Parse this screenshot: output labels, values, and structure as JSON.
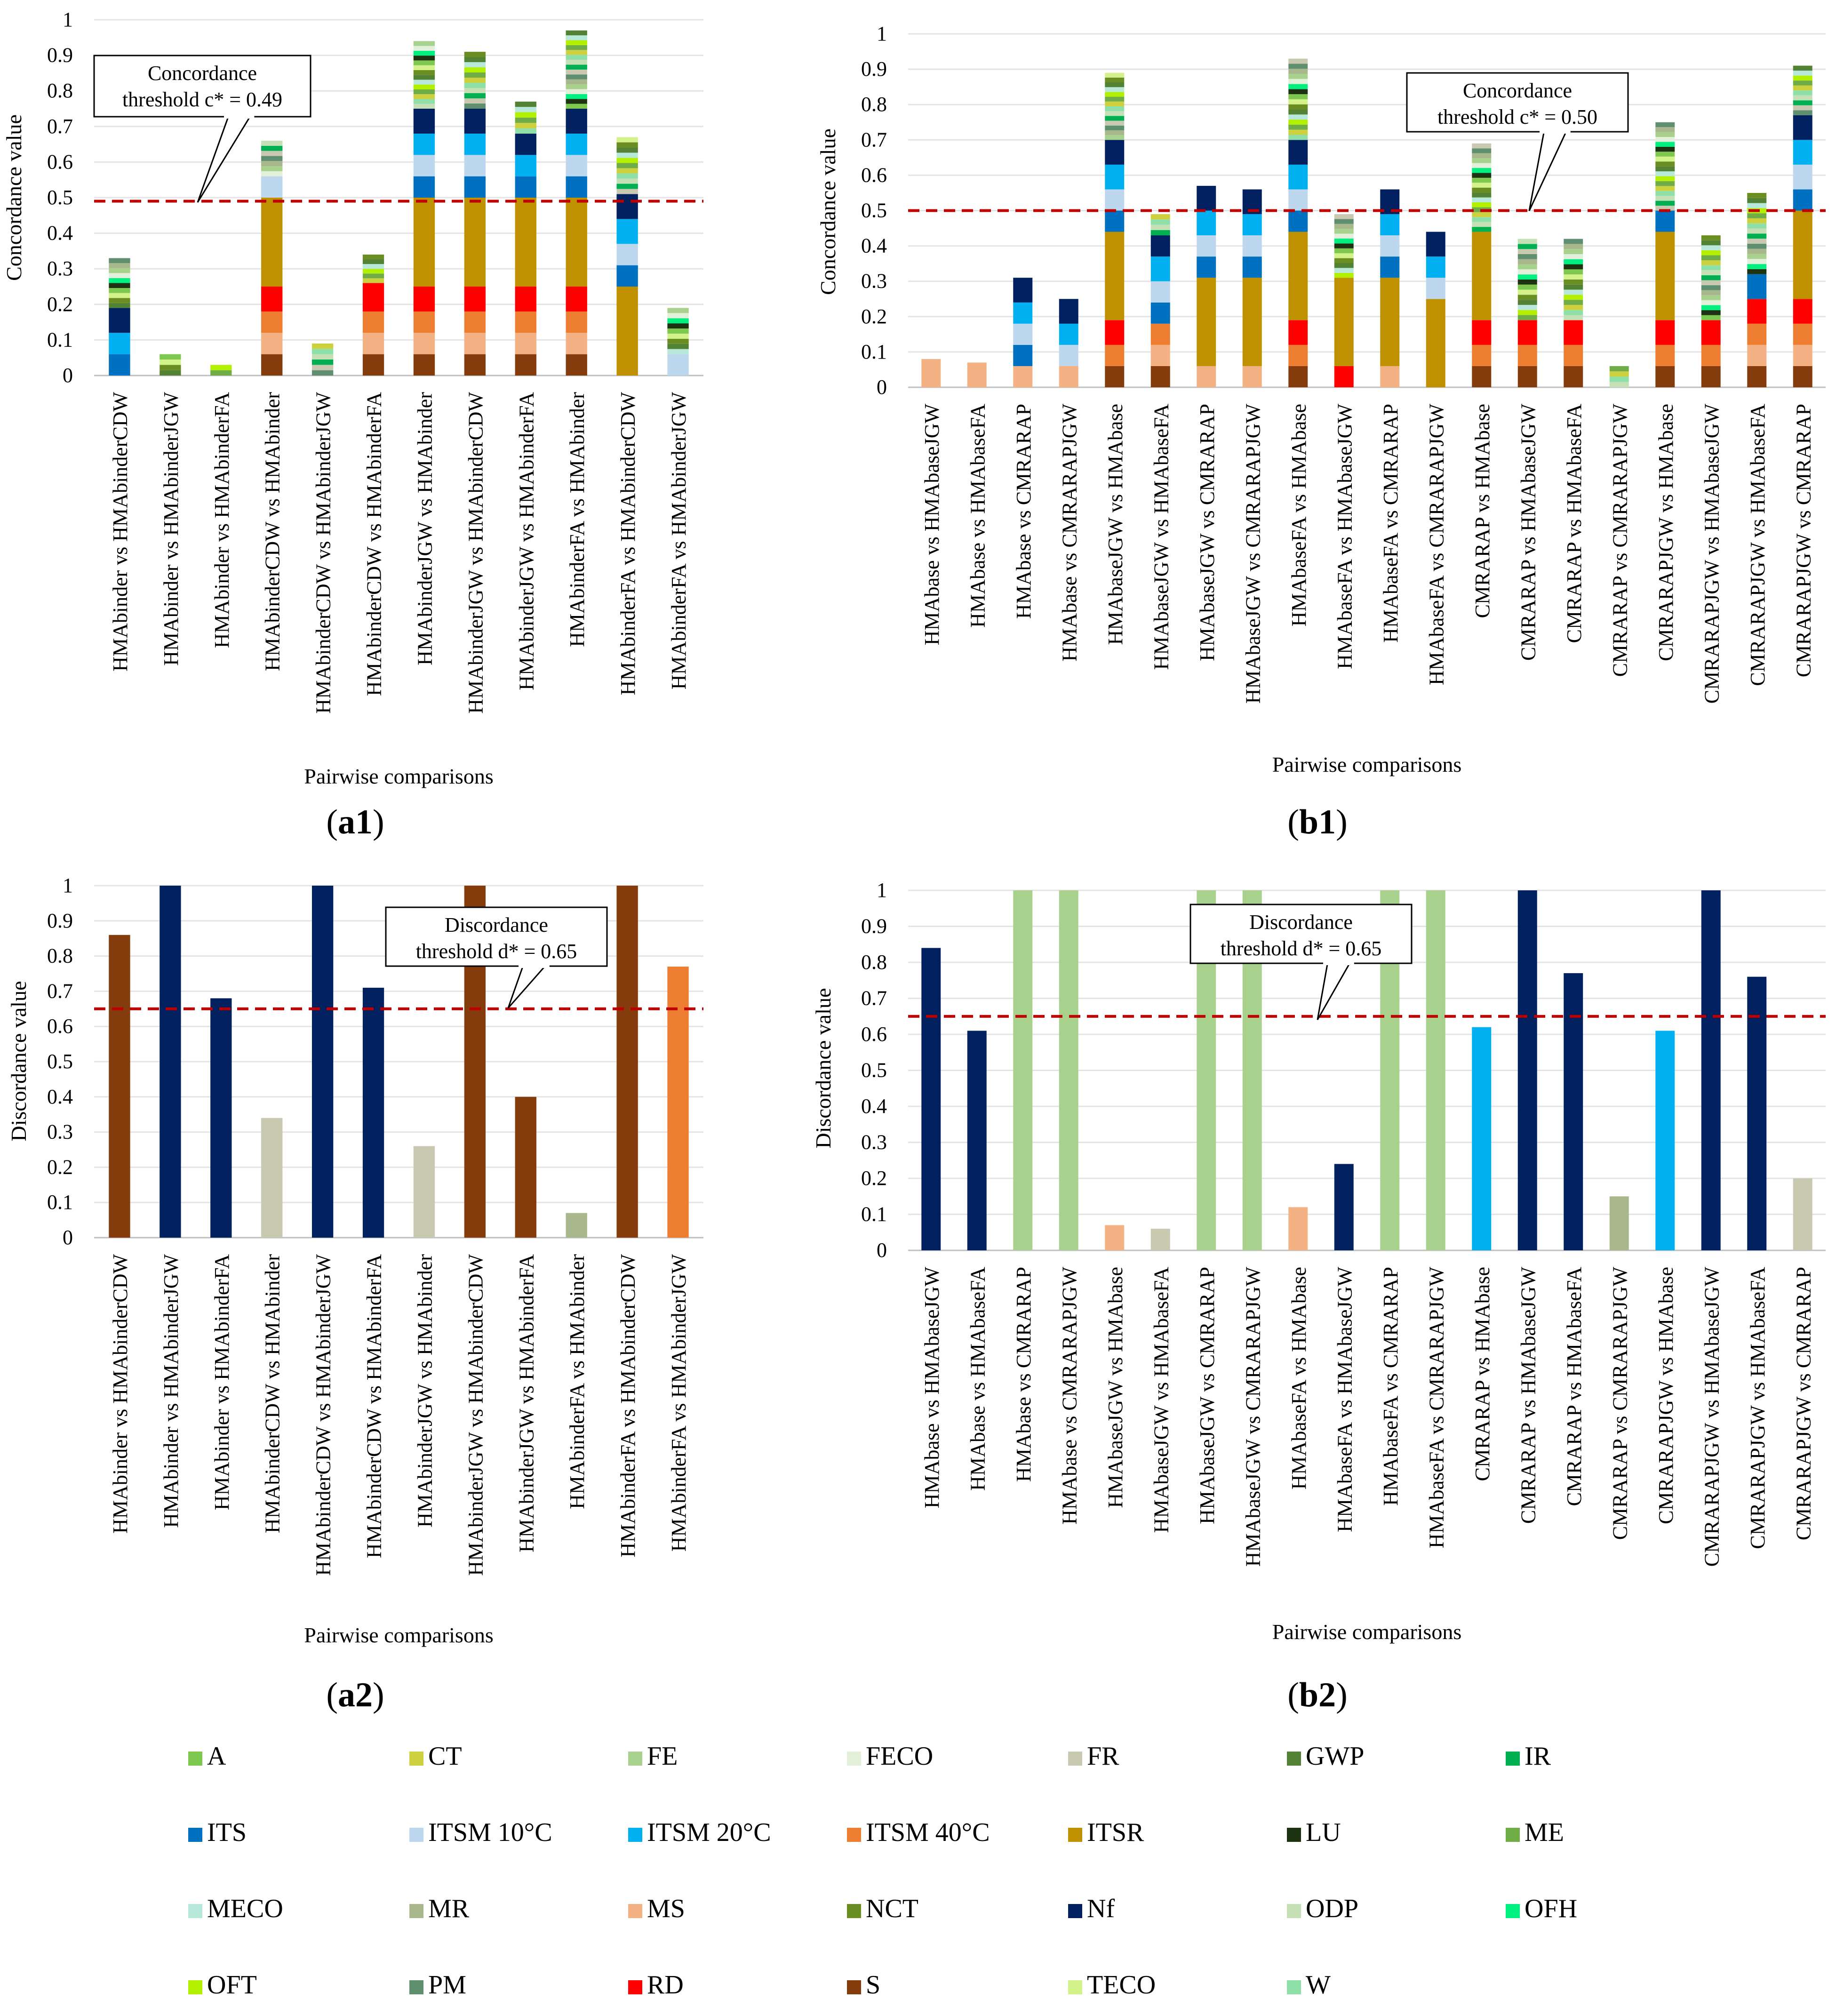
{
  "panel_labels": [
    "a1",
    "b1",
    "a2",
    "b2"
  ],
  "colors": {
    "A": "#7ec850",
    "CT": "#cdd03f",
    "FE": "#a9d18e",
    "FECO": "#e2f0d9",
    "FR": "#c9c9b1",
    "GWP": "#548235",
    "IR": "#00b050",
    "ITS": "#0070c0",
    "ITSM 10°C": "#bdd7ee",
    "ITSM 20°C": "#00b0f0",
    "ITSM 40°C": "#ed7d31",
    "ITSR": "#bf9000",
    "LU": "#1d3311",
    "ME": "#70ad47",
    "MECO": "#b7e8da",
    "MR": "#a9b78c",
    "MS": "#f4b183",
    "NCT": "#6b8e23",
    "Nf": "#002060",
    "ODP": "#c5e0b4",
    "OFH": "#00f080",
    "OFT": "#b3f000",
    "PM": "#5f8f6f",
    "RD": "#ff0000",
    "S": "#843c0c",
    "TECO": "#d4f28a",
    "W": "#8fe0a8"
  },
  "legend": [
    "A",
    "CT",
    "FE",
    "FECO",
    "FR",
    "GWP",
    "IR",
    "ITS",
    "ITSM 10°C",
    "ITSM 20°C",
    "ITSM 40°C",
    "ITSR",
    "LU",
    "ME",
    "MECO",
    "MR",
    "MS",
    "NCT",
    "Nf",
    "ODP",
    "OFH",
    "OFT",
    "PM",
    "RD",
    "S",
    "TECO",
    "W"
  ],
  "chart_data": [
    {
      "id": "a1",
      "type": "bar",
      "stacked": true,
      "ylabel": "Concordance value",
      "xlabel": "Pairwise comparisons",
      "ylim": [
        0,
        1
      ],
      "yticks": [
        0,
        0.1,
        0.2,
        0.3,
        0.4,
        0.5,
        0.6,
        0.7,
        0.8,
        0.9,
        1
      ],
      "threshold": 0.49,
      "threshold_text": [
        "Concordance",
        "threshold c* = 0.49"
      ],
      "categories": [
        "HMAbinder vs HMAbinderCDW",
        "HMAbinder vs HMAbinderJGW",
        "HMAbinder vs HMAbinderFA",
        "HMAbinderCDW vs HMAbinder",
        "HMAbinderCDW vs HMAbinderJGW",
        "HMAbinderCDW vs HMAbinderFA",
        "HMAbinderJGW vs HMAbinder",
        "HMAbinderJGW vs HMAbinderCDW",
        "HMAbinderJGW vs HMAbinderFA",
        "HMAbinderFA vs HMAbinder",
        "HMAbinderFA vs HMAbinderCDW",
        "HMAbinderFA vs HMAbinderJGW"
      ],
      "values": [
        0.33,
        0.06,
        0.03,
        0.66,
        0.09,
        0.34,
        0.94,
        0.91,
        0.77,
        0.97,
        0.67,
        0.19
      ],
      "segments": [
        [
          [
            "ITS",
            0.06
          ],
          [
            "ITSM 20°C",
            0.06
          ],
          [
            "Nf",
            0.07
          ],
          [
            "rest",
            0.14
          ]
        ],
        [
          [
            "rest",
            0.06
          ]
        ],
        [
          [
            "rest",
            0.03
          ]
        ],
        [
          [
            "S",
            0.06
          ],
          [
            "MS",
            0.06
          ],
          [
            "ITSM 40°C",
            0.06
          ],
          [
            "RD",
            0.07
          ],
          [
            "ITSR",
            0.25
          ],
          [
            "ITSM 10°C",
            0.06
          ],
          [
            "rest",
            0.1
          ]
        ],
        [
          [
            "rest",
            0.09
          ]
        ],
        [
          [
            "S",
            0.06
          ],
          [
            "MS",
            0.06
          ],
          [
            "ITSM 40°C",
            0.06
          ],
          [
            "RD",
            0.08
          ],
          [
            "rest",
            0.08
          ]
        ],
        [
          [
            "S",
            0.06
          ],
          [
            "MS",
            0.06
          ],
          [
            "ITSM 40°C",
            0.06
          ],
          [
            "RD",
            0.07
          ],
          [
            "ITSR",
            0.25
          ],
          [
            "ITS",
            0.06
          ],
          [
            "ITSM 10°C",
            0.06
          ],
          [
            "ITSM 20°C",
            0.06
          ],
          [
            "Nf",
            0.07
          ],
          [
            "rest",
            0.19
          ]
        ],
        [
          [
            "S",
            0.06
          ],
          [
            "MS",
            0.06
          ],
          [
            "ITSM 40°C",
            0.06
          ],
          [
            "RD",
            0.07
          ],
          [
            "ITSR",
            0.25
          ],
          [
            "ITS",
            0.06
          ],
          [
            "ITSM 10°C",
            0.06
          ],
          [
            "ITSM 20°C",
            0.06
          ],
          [
            "Nf",
            0.07
          ],
          [
            "rest",
            0.16
          ]
        ],
        [
          [
            "S",
            0.06
          ],
          [
            "MS",
            0.06
          ],
          [
            "ITSM 40°C",
            0.06
          ],
          [
            "RD",
            0.07
          ],
          [
            "ITSR",
            0.25
          ],
          [
            "ITS",
            0.06
          ],
          [
            "ITSM 20°C",
            0.06
          ],
          [
            "Nf",
            0.06
          ],
          [
            "rest",
            0.09
          ]
        ],
        [
          [
            "S",
            0.06
          ],
          [
            "MS",
            0.06
          ],
          [
            "ITSM 40°C",
            0.06
          ],
          [
            "RD",
            0.07
          ],
          [
            "ITSR",
            0.25
          ],
          [
            "ITS",
            0.06
          ],
          [
            "ITSM 10°C",
            0.06
          ],
          [
            "ITSM 20°C",
            0.06
          ],
          [
            "Nf",
            0.07
          ],
          [
            "rest",
            0.22
          ]
        ],
        [
          [
            "ITSR",
            0.25
          ],
          [
            "ITS",
            0.06
          ],
          [
            "ITSM 10°C",
            0.06
          ],
          [
            "ITSM 20°C",
            0.07
          ],
          [
            "Nf",
            0.07
          ],
          [
            "rest",
            0.16
          ]
        ],
        [
          [
            "ITSM 10°C",
            0.06
          ],
          [
            "rest",
            0.13
          ]
        ]
      ]
    },
    {
      "id": "b1",
      "type": "bar",
      "stacked": true,
      "ylabel": "Concordance value",
      "xlabel": "Pairwise comparisons",
      "ylim": [
        0,
        1
      ],
      "yticks": [
        0,
        0.1,
        0.2,
        0.3,
        0.4,
        0.5,
        0.6,
        0.7,
        0.8,
        0.9,
        1
      ],
      "threshold": 0.5,
      "threshold_text": [
        "Concordance",
        "threshold c* = 0.50"
      ],
      "categories": [
        "HMAbase vs HMAbaseJGW",
        "HMAbase vs HMAbaseFA",
        "HMAbase vs CMRARAP",
        "HMAbase vs CMRARAPJGW",
        "HMAbaseJGW vs HMAbase",
        "HMAbaseJGW vs HMAbaseFA",
        "HMAbaseJGW vs CMRARAP",
        "HMAbaseJGW vs CMRARAPJGW",
        "HMAbaseFA vs HMAbase",
        "HMAbaseFA vs HMAbaseJGW",
        "HMAbaseFA vs CMRARAP",
        "HMAbaseFA vs CMRARAPJGW",
        "CMRARAP vs HMAbase",
        "CMRARAP vs HMAbaseJGW",
        "CMRARAP vs HMAbaseFA",
        "CMRARAP vs CMRARAPJGW",
        "CMRARAPJGW vs HMAbase",
        "CMRARAPJGW vs HMAbaseJGW",
        "CMRARAPJGW vs HMAbaseFA",
        "CMRARAPJGW vs CMRARAP"
      ],
      "values": [
        0.08,
        0.07,
        0.31,
        0.25,
        0.89,
        0.49,
        0.57,
        0.56,
        0.93,
        0.49,
        0.56,
        0.44,
        0.69,
        0.42,
        0.42,
        0.06,
        0.75,
        0.43,
        0.55,
        0.91
      ],
      "segments": [
        [
          [
            "MS",
            0.08
          ]
        ],
        [
          [
            "MS",
            0.07
          ]
        ],
        [
          [
            "MS",
            0.06
          ],
          [
            "ITS",
            0.06
          ],
          [
            "ITSM 10°C",
            0.06
          ],
          [
            "ITSM 20°C",
            0.06
          ],
          [
            "Nf",
            0.07
          ]
        ],
        [
          [
            "MS",
            0.06
          ],
          [
            "ITSM 10°C",
            0.06
          ],
          [
            "ITSM 20°C",
            0.06
          ],
          [
            "Nf",
            0.07
          ]
        ],
        [
          [
            "S",
            0.06
          ],
          [
            "ITSM 40°C",
            0.06
          ],
          [
            "RD",
            0.07
          ],
          [
            "ITSR",
            0.25
          ],
          [
            "ITS",
            0.06
          ],
          [
            "ITSM 10°C",
            0.06
          ],
          [
            "ITSM 20°C",
            0.07
          ],
          [
            "Nf",
            0.07
          ],
          [
            "rest",
            0.19
          ]
        ],
        [
          [
            "S",
            0.06
          ],
          [
            "MS",
            0.06
          ],
          [
            "ITSM 40°C",
            0.06
          ],
          [
            "ITS",
            0.06
          ],
          [
            "ITSM 10°C",
            0.06
          ],
          [
            "ITSM 20°C",
            0.07
          ],
          [
            "Nf",
            0.06
          ],
          [
            "rest",
            0.06
          ]
        ],
        [
          [
            "MS",
            0.06
          ],
          [
            "ITSR",
            0.25
          ],
          [
            "ITS",
            0.06
          ],
          [
            "ITSM 10°C",
            0.06
          ],
          [
            "ITSM 20°C",
            0.07
          ],
          [
            "Nf",
            0.07
          ]
        ],
        [
          [
            "MS",
            0.06
          ],
          [
            "ITSR",
            0.25
          ],
          [
            "ITS",
            0.06
          ],
          [
            "ITSM 10°C",
            0.06
          ],
          [
            "ITSM 20°C",
            0.06
          ],
          [
            "Nf",
            0.07
          ]
        ],
        [
          [
            "S",
            0.06
          ],
          [
            "ITSM 40°C",
            0.06
          ],
          [
            "RD",
            0.07
          ],
          [
            "ITSR",
            0.25
          ],
          [
            "ITS",
            0.06
          ],
          [
            "ITSM 10°C",
            0.06
          ],
          [
            "ITSM 20°C",
            0.07
          ],
          [
            "Nf",
            0.07
          ],
          [
            "rest",
            0.23
          ]
        ],
        [
          [
            "RD",
            0.06
          ],
          [
            "ITSR",
            0.25
          ],
          [
            "rest",
            0.18
          ]
        ],
        [
          [
            "MS",
            0.06
          ],
          [
            "ITSR",
            0.25
          ],
          [
            "ITS",
            0.06
          ],
          [
            "ITSM 10°C",
            0.06
          ],
          [
            "ITSM 20°C",
            0.06
          ],
          [
            "Nf",
            0.07
          ]
        ],
        [
          [
            "ITSR",
            0.25
          ],
          [
            "ITSM 10°C",
            0.06
          ],
          [
            "ITSM 20°C",
            0.06
          ],
          [
            "Nf",
            0.07
          ]
        ],
        [
          [
            "S",
            0.06
          ],
          [
            "ITSM 40°C",
            0.06
          ],
          [
            "RD",
            0.07
          ],
          [
            "ITSR",
            0.25
          ],
          [
            "rest",
            0.25
          ]
        ],
        [
          [
            "S",
            0.06
          ],
          [
            "ITSM 40°C",
            0.06
          ],
          [
            "RD",
            0.07
          ],
          [
            "rest",
            0.23
          ]
        ],
        [
          [
            "S",
            0.06
          ],
          [
            "ITSM 40°C",
            0.06
          ],
          [
            "RD",
            0.07
          ],
          [
            "rest",
            0.23
          ]
        ],
        [
          [
            "rest",
            0.06
          ]
        ],
        [
          [
            "S",
            0.06
          ],
          [
            "ITSM 40°C",
            0.06
          ],
          [
            "RD",
            0.07
          ],
          [
            "ITSR",
            0.25
          ],
          [
            "ITS",
            0.06
          ],
          [
            "rest",
            0.25
          ]
        ],
        [
          [
            "S",
            0.06
          ],
          [
            "ITSM 40°C",
            0.06
          ],
          [
            "RD",
            0.07
          ],
          [
            "rest",
            0.24
          ]
        ],
        [
          [
            "S",
            0.06
          ],
          [
            "MS",
            0.06
          ],
          [
            "ITSM 40°C",
            0.06
          ],
          [
            "RD",
            0.07
          ],
          [
            "ITS",
            0.07
          ],
          [
            "rest",
            0.23
          ]
        ],
        [
          [
            "S",
            0.06
          ],
          [
            "MS",
            0.06
          ],
          [
            "ITSM 40°C",
            0.06
          ],
          [
            "RD",
            0.07
          ],
          [
            "ITSR",
            0.25
          ],
          [
            "ITS",
            0.06
          ],
          [
            "ITSM 10°C",
            0.07
          ],
          [
            "ITSM 20°C",
            0.07
          ],
          [
            "Nf",
            0.07
          ],
          [
            "rest",
            0.14
          ]
        ]
      ]
    },
    {
      "id": "a2",
      "type": "bar",
      "ylabel": "Discordance value",
      "xlabel": "Pairwise comparisons",
      "ylim": [
        0,
        1
      ],
      "yticks": [
        0,
        0.1,
        0.2,
        0.3,
        0.4,
        0.5,
        0.6,
        0.7,
        0.8,
        0.9,
        1
      ],
      "threshold": 0.65,
      "threshold_text": [
        "Discordance",
        "threshold d* = 0.65"
      ],
      "categories": [
        "HMAbinder vs HMAbinderCDW",
        "HMAbinder vs HMAbinderJGW",
        "HMAbinder vs HMAbinderFA",
        "HMAbinderCDW vs HMAbinder",
        "HMAbinderCDW vs HMAbinderJGW",
        "HMAbinderCDW vs HMAbinderFA",
        "HMAbinderJGW vs HMAbinder",
        "HMAbinderJGW vs HMAbinderCDW",
        "HMAbinderJGW vs HMAbinderFA",
        "HMAbinderFA vs HMAbinder",
        "HMAbinderFA vs HMAbinderCDW",
        "HMAbinderFA vs HMAbinderJGW"
      ],
      "values": [
        0.86,
        1.0,
        0.68,
        0.34,
        1.0,
        0.71,
        0.26,
        1.0,
        0.4,
        0.07,
        1.0,
        0.77
      ],
      "bar_criteria": [
        "S",
        "Nf",
        "Nf",
        "FR",
        "Nf",
        "Nf",
        "FR",
        "S",
        "S",
        "MR",
        "S",
        "ITSM 40°C"
      ]
    },
    {
      "id": "b2",
      "type": "bar",
      "ylabel": "Discordance value",
      "xlabel": "Pairwise comparisons",
      "ylim": [
        0,
        1
      ],
      "yticks": [
        0,
        0.1,
        0.2,
        0.3,
        0.4,
        0.5,
        0.6,
        0.7,
        0.8,
        0.9,
        1
      ],
      "threshold": 0.65,
      "threshold_text": [
        "Discordance",
        "threshold d* = 0.65"
      ],
      "categories": [
        "HMAbase vs HMAbaseJGW",
        "HMAbase vs HMAbaseFA",
        "HMAbase vs CMRARAP",
        "HMAbase vs CMRARAPJGW",
        "HMAbaseJGW vs HMAbase",
        "HMAbaseJGW vs HMAbaseFA",
        "HMAbaseJGW vs CMRARAP",
        "HMAbaseJGW vs CMRARAPJGW",
        "HMAbaseFA vs HMAbase",
        "HMAbaseFA vs HMAbaseJGW",
        "HMAbaseFA vs CMRARAP",
        "HMAbaseFA vs CMRARAPJGW",
        "CMRARAP vs HMAbase",
        "CMRARAP vs HMAbaseJGW",
        "CMRARAP vs HMAbaseFA",
        "CMRARAP vs CMRARAPJGW",
        "CMRARAPJGW vs HMAbase",
        "CMRARAPJGW vs HMAbaseJGW",
        "CMRARAPJGW vs HMAbaseFA",
        "CMRARAPJGW vs CMRARAP"
      ],
      "values": [
        0.84,
        0.61,
        1.0,
        1.0,
        0.07,
        0.06,
        1.0,
        1.0,
        0.12,
        0.24,
        1.0,
        1.0,
        0.62,
        1.0,
        0.77,
        0.15,
        0.61,
        1.0,
        0.76,
        0.2
      ],
      "bar_criteria": [
        "Nf",
        "Nf",
        "FE",
        "FE",
        "MS",
        "FR",
        "FE",
        "FE",
        "MS",
        "Nf",
        "FE",
        "FE",
        "ITSM 20°C",
        "Nf",
        "Nf",
        "MR",
        "ITSM 20°C",
        "Nf",
        "Nf",
        "FR"
      ]
    }
  ]
}
